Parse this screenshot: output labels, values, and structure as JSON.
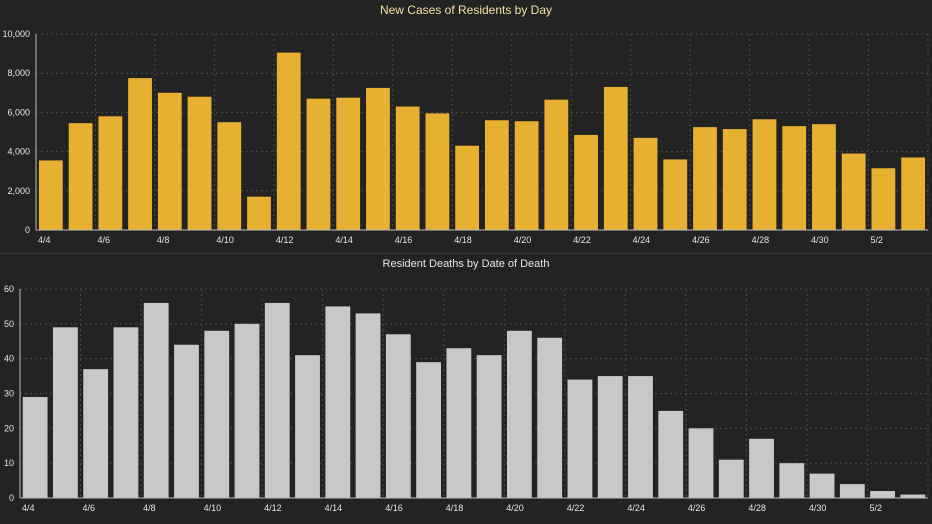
{
  "theme": {
    "background": "#232323",
    "grid": "#4a4a4a",
    "axis_text": "#e6e6e6",
    "cases_bar": "#e8b030",
    "cases_title": "#f3e2a0",
    "deaths_bar": "#c8c8c8",
    "deaths_title": "#e6e6e6"
  },
  "chart_data": [
    {
      "type": "bar",
      "title": "New Cases of Residents by Day",
      "xlabel": "",
      "ylabel": "",
      "ylim": [
        0,
        10000
      ],
      "yticks": [
        "0",
        "2,000",
        "4,000",
        "6,000",
        "8,000",
        "10,000"
      ],
      "ytick_values": [
        0,
        2000,
        4000,
        6000,
        8000,
        10000
      ],
      "grid": true,
      "categories": [
        "4/4",
        "4/5",
        "4/6",
        "4/7",
        "4/8",
        "4/9",
        "4/10",
        "4/11",
        "4/12",
        "4/13",
        "4/14",
        "4/15",
        "4/16",
        "4/17",
        "4/18",
        "4/19",
        "4/20",
        "4/21",
        "4/22",
        "4/23",
        "4/24",
        "4/25",
        "4/26",
        "4/27",
        "4/28",
        "4/29",
        "4/30",
        "5/1",
        "5/2",
        "5/3"
      ],
      "xtick_labels": [
        "4/4",
        "",
        "4/6",
        "",
        "4/8",
        "",
        "4/10",
        "",
        "4/12",
        "",
        "4/14",
        "",
        "4/16",
        "",
        "4/18",
        "",
        "4/20",
        "",
        "4/22",
        "",
        "4/24",
        "",
        "4/26",
        "",
        "4/28",
        "",
        "4/30",
        "",
        "5/2",
        ""
      ],
      "values": [
        3550,
        5450,
        5800,
        7750,
        7000,
        6800,
        5500,
        1700,
        9050,
        6700,
        6750,
        7250,
        6300,
        5950,
        4300,
        5600,
        5550,
        6650,
        4850,
        7300,
        4700,
        3600,
        5250,
        5150,
        5650,
        5300,
        5400,
        3900,
        3150,
        3700
      ]
    },
    {
      "type": "bar",
      "title": "Resident Deaths by Date of Death",
      "xlabel": "",
      "ylabel": "",
      "ylim": [
        0,
        60
      ],
      "yticks": [
        "0",
        "10",
        "20",
        "30",
        "40",
        "50",
        "60"
      ],
      "ytick_values": [
        0,
        10,
        20,
        30,
        40,
        50,
        60
      ],
      "grid": true,
      "categories": [
        "4/4",
        "4/5",
        "4/6",
        "4/7",
        "4/8",
        "4/9",
        "4/10",
        "4/11",
        "4/12",
        "4/13",
        "4/14",
        "4/15",
        "4/16",
        "4/17",
        "4/18",
        "4/19",
        "4/20",
        "4/21",
        "4/22",
        "4/23",
        "4/24",
        "4/25",
        "4/26",
        "4/27",
        "4/28",
        "4/29",
        "4/30",
        "5/1",
        "5/2",
        "5/3"
      ],
      "xtick_labels": [
        "4/4",
        "",
        "4/6",
        "",
        "4/8",
        "",
        "4/10",
        "",
        "4/12",
        "",
        "4/14",
        "",
        "4/16",
        "",
        "4/18",
        "",
        "4/20",
        "",
        "4/22",
        "",
        "4/24",
        "",
        "4/26",
        "",
        "4/28",
        "",
        "4/30",
        "",
        "5/2",
        ""
      ],
      "values": [
        29,
        49,
        37,
        49,
        56,
        44,
        48,
        50,
        56,
        41,
        55,
        53,
        47,
        39,
        43,
        41,
        48,
        46,
        34,
        35,
        35,
        25,
        20,
        11,
        17,
        10,
        7,
        4,
        2,
        1
      ]
    }
  ]
}
